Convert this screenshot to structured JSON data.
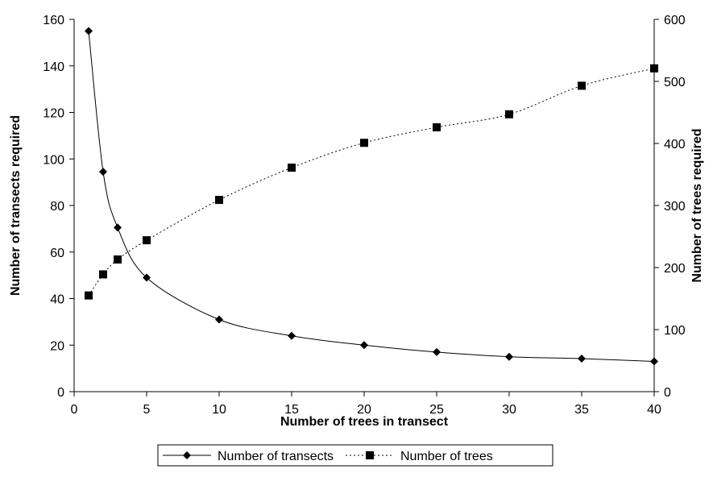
{
  "chart_data": {
    "type": "line",
    "title": "",
    "xlabel": "Number of trees in transect",
    "ylabel_left": "Number of transects required",
    "ylabel_right": "Number of trees required",
    "xlim": [
      0,
      40
    ],
    "ylim_left": [
      0,
      160
    ],
    "ylim_right": [
      0,
      600
    ],
    "xticks": [
      0,
      5,
      10,
      15,
      20,
      25,
      30,
      35,
      40
    ],
    "yticks_left": [
      0,
      20,
      40,
      60,
      80,
      100,
      120,
      140,
      160
    ],
    "yticks_right": [
      0,
      100,
      200,
      300,
      400,
      500,
      600
    ],
    "grid": false,
    "legend_position": "bottom",
    "series": [
      {
        "name": "Number of transects",
        "axis": "left",
        "marker": "diamond",
        "line_style": "solid",
        "color": "#000000",
        "x": [
          1,
          2,
          3,
          5,
          10,
          15,
          20,
          25,
          30,
          35,
          40
        ],
        "y": [
          155,
          94.5,
          70.5,
          49,
          31,
          24,
          20,
          17,
          15,
          14.2,
          13
        ]
      },
      {
        "name": "Number of trees",
        "axis": "right",
        "marker": "square",
        "line_style": "dotted",
        "color": "#000000",
        "x": [
          1,
          2,
          3,
          5,
          10,
          15,
          20,
          25,
          30,
          35,
          40
        ],
        "y": [
          155,
          189,
          213,
          244,
          309,
          361,
          401,
          426,
          447,
          493,
          521
        ]
      }
    ]
  }
}
